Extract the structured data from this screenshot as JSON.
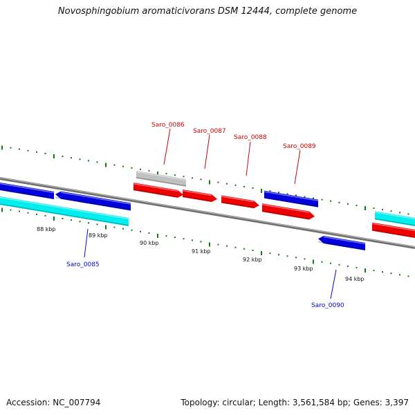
{
  "title": "Novosphingobium aromaticivorans DSM 12444, complete genome",
  "footer": {
    "accession": "Accession: NC_007794",
    "info": "Topology: circular; Length: 3,561,584 bp; Genes: 3,397"
  },
  "scale": {
    "labels": [
      "88 kbp",
      "89 kbp",
      "90 kbp",
      "91 kbp",
      "92 kbp",
      "93 kbp",
      "94 kbp"
    ]
  },
  "gene_labels": [
    {
      "name": "Saro_0085",
      "color": "#0000cc"
    },
    {
      "name": "Saro_0086",
      "color": "#cc0000"
    },
    {
      "name": "Saro_0087",
      "color": "#cc0000"
    },
    {
      "name": "Saro_0088",
      "color": "#cc0000"
    },
    {
      "name": "Saro_0089",
      "color": "#cc0000"
    },
    {
      "name": "Saro_0090",
      "color": "#0000cc"
    }
  ],
  "colors": {
    "forward_cds": "#ee0000",
    "reverse_cds": "#0000dd",
    "rna": "#00eeee",
    "other": "#c0c0c0",
    "backbone": "#808080",
    "ticks": "#117711"
  }
}
